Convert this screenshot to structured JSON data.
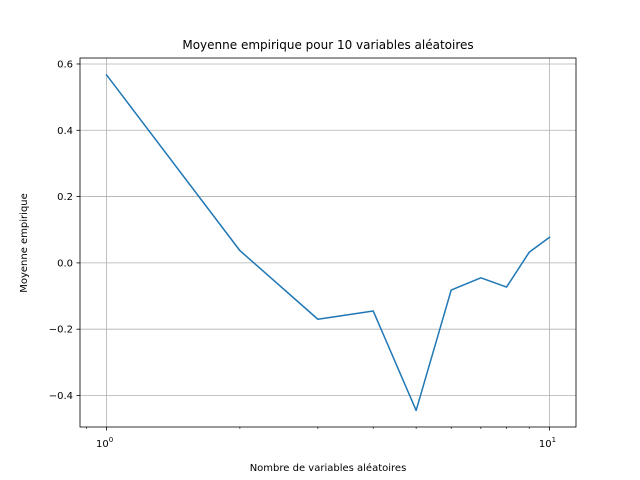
{
  "chart_data": {
    "type": "line",
    "title": "Moyenne empirique pour 10 variables aléatoires",
    "xlabel": "Nombre de variables aléatoires",
    "ylabel": "Moyenne empirique",
    "xscale": "log",
    "xlim": [
      0.871,
      11.48
    ],
    "ylim": [
      -0.495,
      0.618
    ],
    "grid": true,
    "x_ticks": [
      {
        "value": 1,
        "base": "10",
        "exp": "0"
      },
      {
        "value": 10,
        "base": "10",
        "exp": "1"
      }
    ],
    "y_ticks": [
      {
        "value": 0.6,
        "label": "0.6"
      },
      {
        "value": 0.4,
        "label": "0.4"
      },
      {
        "value": 0.2,
        "label": "0.2"
      },
      {
        "value": 0.0,
        "label": "0.0"
      },
      {
        "value": -0.2,
        "label": "−0.2"
      },
      {
        "value": -0.4,
        "label": "−0.4"
      }
    ],
    "series": [
      {
        "color": "#1f77b4",
        "x": [
          1,
          2,
          3,
          4,
          5,
          6,
          7,
          8,
          9,
          10
        ],
        "y": [
          0.567,
          0.037,
          -0.17,
          -0.145,
          -0.445,
          -0.082,
          -0.045,
          -0.073,
          0.032,
          0.077
        ]
      }
    ]
  }
}
